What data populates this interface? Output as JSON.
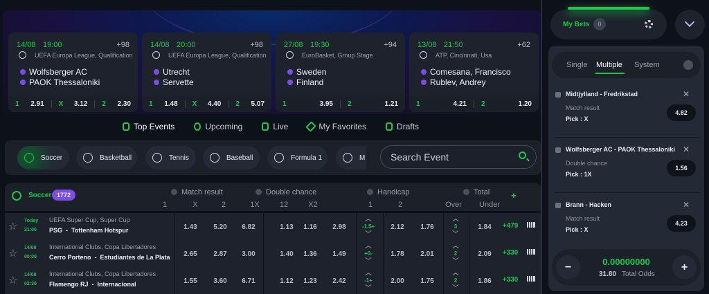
{
  "featured": [
    {
      "date": "14/08",
      "time": "19:00",
      "more": "+98",
      "league": "UEFA Europa League, Qualification",
      "sport_icon": "soccer-ball-icon",
      "team1": "Wolfsberger AC",
      "team2": "PAOK Thessaloniki",
      "odds": [
        {
          "k": "1",
          "v": "2.91"
        },
        {
          "k": "X",
          "v": "3.12"
        },
        {
          "k": "2",
          "v": "2.30"
        }
      ]
    },
    {
      "date": "14/08",
      "time": "20:00",
      "more": "+98",
      "league": "UEFA Europa League, Qualification",
      "sport_icon": "soccer-ball-icon",
      "team1": "Utrecht",
      "team2": "Servette",
      "odds": [
        {
          "k": "1",
          "v": "1.48"
        },
        {
          "k": "X",
          "v": "4.40"
        },
        {
          "k": "2",
          "v": "5.07"
        }
      ]
    },
    {
      "date": "27/08",
      "time": "19:30",
      "more": "+94",
      "league": "EuroBasket, Group Stage",
      "sport_icon": "basketball-icon",
      "team1": "Sweden",
      "team2": "Finland",
      "odds": [
        {
          "k": "1",
          "v": "3.95"
        },
        {
          "k": "2",
          "v": "1.21"
        }
      ]
    },
    {
      "date": "13/08",
      "time": "21:50",
      "more": "+62",
      "league": "ATP, Cincinnati, Usa",
      "sport_icon": "tennis-ball-icon",
      "team1": "Comesana, Francisco",
      "team2": "Rublev, Andrey",
      "odds": [
        {
          "k": "1",
          "v": "4.21"
        },
        {
          "k": "2",
          "v": "1.20"
        }
      ]
    }
  ],
  "tabs": [
    "Top Events",
    "Upcoming",
    "Live",
    "My Favorites",
    "Drafts"
  ],
  "sports": [
    "Soccer",
    "Basketball",
    "Tennis",
    "Baseball",
    "Formula 1",
    "M"
  ],
  "search": {
    "placeholder": "Search Event"
  },
  "table": {
    "sport": "Soccer",
    "count": "1772",
    "groups": [
      "Match result",
      "Double chance",
      "Handicap",
      "Total"
    ],
    "cols": [
      "1",
      "X",
      "2",
      "1X",
      "12",
      "X2",
      "1",
      "2",
      "Over",
      "Under"
    ],
    "add": "+",
    "rows": [
      {
        "day": "Today",
        "time": "21:00",
        "league": "UEFA Super Cup, Super Cup",
        "team1": "PSG",
        "team2": "Tottenham Hotspur",
        "odds": [
          "1.43",
          "5.20",
          "6.82",
          "1.13",
          "1.16",
          "2.98"
        ],
        "hcp": "-1.5+",
        "h": [
          "2.12",
          "1.76"
        ],
        "total": "3",
        "t": "1.84",
        "more": "+479"
      },
      {
        "day": "14/08",
        "time": "00:00",
        "league": "International Clubs, Copa Libertadores",
        "team1": "Cerro Porteno",
        "team2": "Estudiantes de La Plata",
        "odds": [
          "2.65",
          "2.87",
          "3.00",
          "1.40",
          "1.36",
          "1.49"
        ],
        "hcp": "+0-",
        "h": [
          "1.78",
          "2.01"
        ],
        "total": "2",
        "t": "2.09",
        "more": "+330"
      },
      {
        "day": "14/08",
        "time": "02:30",
        "league": "International Clubs, Copa Libertadores",
        "team1": "Flamengo RJ",
        "team2": "Internacional",
        "odds": [
          "1.55",
          "3.60",
          "6.71",
          "1.12",
          "1.23",
          "2.42"
        ],
        "hcp": "-1+",
        "h": [
          "2.00",
          "1.75"
        ],
        "total": "2",
        "t": "1.86",
        "more": "+330"
      }
    ]
  },
  "betslip": {
    "my_bets": "My Bets",
    "count": "0",
    "tabs": [
      "Single",
      "Multiple",
      "System"
    ],
    "items": [
      {
        "match": "Midtjylland - Fredrikstad",
        "market": "Match result",
        "pick": "Pick : X",
        "odd": "4.82"
      },
      {
        "match": "Wolfsberger AC - PAOK Thessaloniki",
        "market": "Double chance",
        "pick": "Pick : 1X",
        "odd": "1.56"
      },
      {
        "match": "Brann - Hacken",
        "market": "Match result",
        "pick": "Pick : X",
        "odd": "4.23"
      }
    ],
    "stake": "0.00000000",
    "total_odds": "31.80",
    "total_label": "Total Odds",
    "minus": "−",
    "plus": "+"
  },
  "colors": {
    "accent": "#18c94e",
    "purple": "#7b4de6",
    "bg": "#0d121a"
  }
}
